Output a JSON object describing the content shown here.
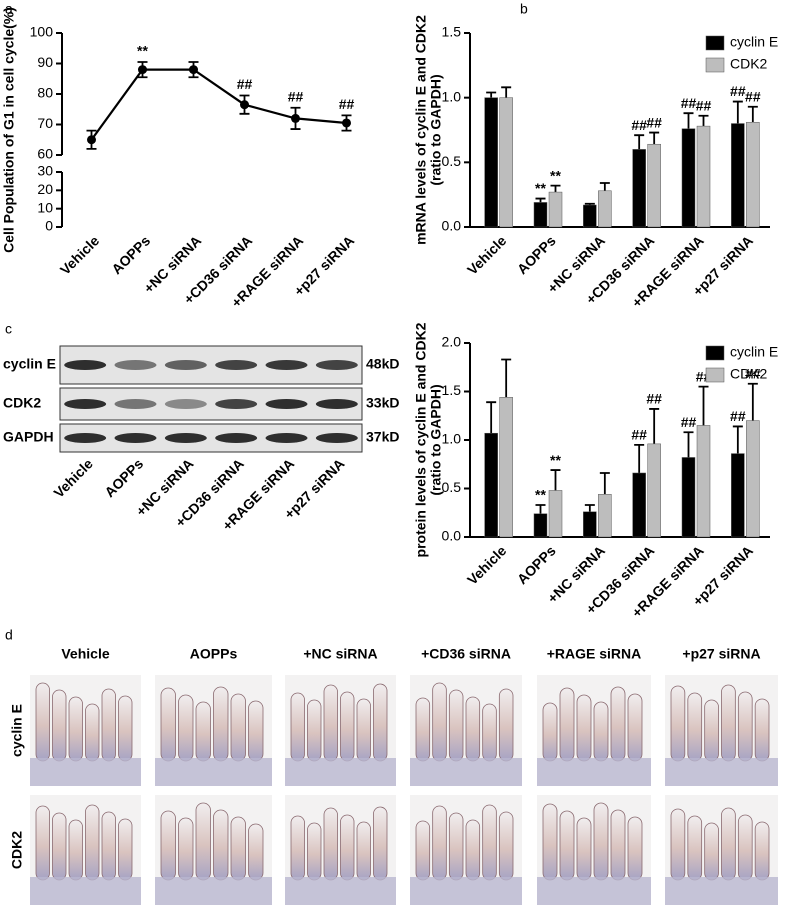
{
  "panel_labels": [
    "a",
    "b",
    "c",
    "d"
  ],
  "chart_data": [
    {
      "type": "line",
      "ylabel": "Cell Population of G1 in cell cycle(%)",
      "categories": [
        "Vehicle",
        "AOPPs",
        "+NC siRNA",
        "+CD36 siRNA",
        "+RAGE siRNA",
        "+p27 siRNA"
      ],
      "values": [
        65,
        88,
        88,
        76.5,
        72,
        70.5
      ],
      "errors": [
        3,
        2.5,
        2.5,
        3,
        3.5,
        2.5
      ],
      "significance": [
        null,
        "**",
        null,
        "##",
        "##",
        "##"
      ],
      "color": "#000000",
      "ylim": [
        0,
        100
      ],
      "ybreak": [
        30,
        60
      ],
      "yticks": [
        0,
        10,
        20,
        30,
        60,
        70,
        80,
        90,
        100
      ]
    },
    {
      "type": "bar",
      "ylabel": [
        "mRNA levels of cyclin E and CDK2",
        "(ratio to GAPDH)"
      ],
      "categories": [
        "Vehicle",
        "AOPPs",
        "+NC siRNA",
        "+CD36 siRNA",
        "+RAGE siRNA",
        "+p27 siRNA"
      ],
      "series": [
        {
          "name": "cyclin E",
          "color": "#000000",
          "values": [
            1.0,
            0.19,
            0.17,
            0.6,
            0.76,
            0.8
          ],
          "errors": [
            0.04,
            0.03,
            0.01,
            0.11,
            0.12,
            0.17
          ],
          "significance": [
            null,
            "**",
            null,
            "##",
            "##",
            "##"
          ]
        },
        {
          "name": "CDK2",
          "color": "#bdbdbd",
          "values": [
            1.0,
            0.27,
            0.28,
            0.64,
            0.78,
            0.81
          ],
          "errors": [
            0.08,
            0.05,
            0.06,
            0.09,
            0.08,
            0.12
          ],
          "significance": [
            null,
            "**",
            null,
            "##",
            "##",
            "##"
          ]
        }
      ],
      "ylim": [
        0,
        1.5
      ],
      "yticks": [
        {
          "value": 0,
          "label": "0.0"
        },
        0.5,
        {
          "value": 1,
          "label": "1.0"
        },
        1.5
      ],
      "legend": "top-right"
    },
    {
      "type": "bar",
      "ylabel": [
        "protein levels of cyclin E and CDK2",
        "(ratio to GAPDH)"
      ],
      "categories": [
        "Vehicle",
        "AOPPs",
        "+NC siRNA",
        "+CD36 siRNA",
        "+RAGE siRNA",
        "+p27 siRNA"
      ],
      "series": [
        {
          "name": "cyclin E",
          "color": "#000000",
          "values": [
            1.07,
            0.24,
            0.26,
            0.66,
            0.82,
            0.86
          ],
          "errors": [
            0.32,
            0.09,
            0.07,
            0.29,
            0.26,
            0.28
          ],
          "significance": [
            null,
            "**",
            null,
            "##",
            "##",
            "##"
          ]
        },
        {
          "name": "CDK2",
          "color": "#bdbdbd",
          "values": [
            1.44,
            0.48,
            0.44,
            0.96,
            1.15,
            1.2
          ],
          "errors": [
            0.39,
            0.21,
            0.22,
            0.36,
            0.4,
            0.38
          ],
          "significance": [
            null,
            "**",
            null,
            "##",
            "##",
            "##"
          ]
        }
      ],
      "ylim": [
        0,
        2
      ],
      "yticks": [
        {
          "value": 0,
          "label": "0.0"
        },
        0.5,
        {
          "value": 1,
          "label": "1.0"
        },
        1.5,
        {
          "value": 2,
          "label": "2.0"
        }
      ],
      "legend": "top-right"
    }
  ],
  "blot": {
    "rows": [
      "cyclin E",
      "CDK2",
      "GAPDH"
    ],
    "sizes": [
      "48kD",
      "33kD",
      "37kD"
    ],
    "lanes": [
      "Vehicle",
      "AOPPs",
      "+NC siRNA",
      "+CD36 siRNA",
      "+RAGE siRNA",
      "+p27 siRNA"
    ]
  },
  "histology": {
    "columns": [
      "Vehicle",
      "AOPPs",
      "+NC siRNA",
      "+CD36 siRNA",
      "+RAGE siRNA",
      "+p27 siRNA"
    ],
    "rows": [
      "cyclin E",
      "CDK2"
    ]
  }
}
